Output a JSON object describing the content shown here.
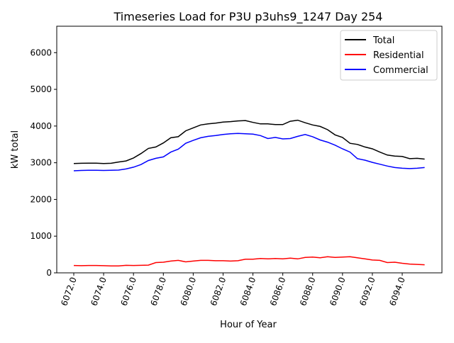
{
  "chart_data": {
    "type": "line",
    "title": "Timeseries Load for P3U p3uhs9_1247  Day 254",
    "xlabel": "Hour of Year",
    "ylabel": "kW total",
    "xlim": [
      6070.86,
      6096.66
    ],
    "ylim": [
      0,
      6720
    ],
    "xticks": [
      "6072.0",
      "6074.0",
      "6076.0",
      "6078.0",
      "6080.0",
      "6082.0",
      "6084.0",
      "6086.0",
      "6088.0",
      "6090.0",
      "6092.0",
      "6094.0"
    ],
    "yticks": [
      "0",
      "1000",
      "2000",
      "3000",
      "4000",
      "5000",
      "6000"
    ],
    "grid": false,
    "legend_position": "top-right",
    "x_start": 6072,
    "x_step": 0.5,
    "series": [
      {
        "name": "Total",
        "color": "#000000",
        "values": [
          2980,
          2985,
          2990,
          2990,
          2980,
          2985,
          3020,
          3050,
          3130,
          3250,
          3390,
          3430,
          3540,
          3680,
          3710,
          3870,
          3950,
          4030,
          4060,
          4080,
          4110,
          4120,
          4140,
          4150,
          4100,
          4060,
          4060,
          4040,
          4040,
          4130,
          4160,
          4090,
          4030,
          3990,
          3900,
          3760,
          3690,
          3530,
          3500,
          3430,
          3380,
          3290,
          3210,
          3180,
          3170,
          3110,
          3120,
          3100
        ]
      },
      {
        "name": "Residential",
        "color": "#ff0000",
        "values": [
          200,
          195,
          200,
          200,
          195,
          190,
          190,
          205,
          200,
          205,
          210,
          280,
          290,
          320,
          340,
          300,
          320,
          340,
          340,
          330,
          330,
          320,
          330,
          370,
          370,
          390,
          380,
          390,
          380,
          400,
          380,
          420,
          430,
          410,
          440,
          420,
          430,
          440,
          410,
          380,
          350,
          340,
          280,
          290,
          260,
          240,
          230,
          220
        ]
      },
      {
        "name": "Commercial",
        "color": "#0000ff",
        "values": [
          2780,
          2790,
          2795,
          2795,
          2790,
          2795,
          2800,
          2830,
          2880,
          2950,
          3060,
          3120,
          3160,
          3290,
          3370,
          3530,
          3610,
          3680,
          3720,
          3740,
          3770,
          3790,
          3800,
          3790,
          3780,
          3740,
          3660,
          3690,
          3650,
          3660,
          3720,
          3770,
          3710,
          3620,
          3560,
          3480,
          3380,
          3290,
          3110,
          3070,
          3010,
          2960,
          2910,
          2870,
          2850,
          2840,
          2850,
          2870
        ]
      }
    ]
  }
}
